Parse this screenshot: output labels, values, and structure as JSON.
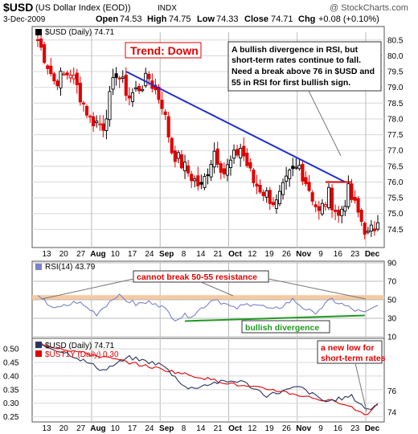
{
  "header": {
    "symbol": "$USD",
    "name": "(US Dollar Index (EOD))",
    "exchange": "INDX",
    "copyright": "@ StockCharts.com",
    "date": "3-Dec-2009",
    "open_label": "Open",
    "open": "74.53",
    "high_label": "High",
    "high": "74.75",
    "low_label": "Low",
    "low": "74.33",
    "close_label": "Close",
    "close": "74.71",
    "chg_label": "Chg",
    "chg": "+0.08 (+0.10%)"
  },
  "x_axis": {
    "labels": [
      {
        "text": "13",
        "bold": false
      },
      {
        "text": "20",
        "bold": false
      },
      {
        "text": "27",
        "bold": false
      },
      {
        "text": "Aug",
        "bold": true
      },
      {
        "text": "10",
        "bold": false
      },
      {
        "text": "17",
        "bold": false
      },
      {
        "text": "24",
        "bold": false
      },
      {
        "text": "Sep",
        "bold": true
      },
      {
        "text": "8",
        "bold": false
      },
      {
        "text": "14",
        "bold": false
      },
      {
        "text": "21",
        "bold": false
      },
      {
        "text": "Oct",
        "bold": true
      },
      {
        "text": "12",
        "bold": false
      },
      {
        "text": "19",
        "bold": false
      },
      {
        "text": "26",
        "bold": false
      },
      {
        "text": "Nov",
        "bold": true
      },
      {
        "text": "9",
        "bold": false
      },
      {
        "text": "16",
        "bold": false
      },
      {
        "text": "23",
        "bold": false
      },
      {
        "text": "Dec",
        "bold": true
      }
    ]
  },
  "panels": {
    "price": {
      "legend": "$USD (Daily) 74.71",
      "title_annotation": "Trend: Down",
      "note_lines": [
        "A bullish divergence in RSI, but",
        "short-term rates continue to fall.",
        "Need a break above 76 in $USD and",
        "55 in RSI for first bullish sign."
      ],
      "y_ticks": [
        "80.5",
        "80.0",
        "79.5",
        "79.0",
        "78.5",
        "78.0",
        "77.5",
        "77.0",
        "76.5",
        "76.0",
        "75.5",
        "75.0",
        "74.5"
      ]
    },
    "rsi": {
      "legend": "RSI(14) 43.79",
      "annotation_top": "cannot break 50-55 resistance",
      "annotation_bottom": "bullish divergence",
      "y_ticks": [
        "90",
        "70",
        "50",
        "30",
        "10"
      ]
    },
    "compare": {
      "legend_1": "$USD (Daily) 74.71",
      "legend_2": "$UST1Y (Daily) 0.30",
      "annotation": [
        "a new low for",
        "short-term rates"
      ],
      "y_ticks_left": [
        "0.50",
        "0.45",
        "0.40",
        "0.35",
        "0.30",
        "0.25"
      ],
      "y_ticks_right": [
        "76",
        "74"
      ]
    }
  },
  "colors": {
    "up_candle": "#000000",
    "down_candle": "#e00000",
    "trendline": "#1f2fd0",
    "resistance": "#e00000",
    "rsi_line": "#7b82c9",
    "rsi_band": "#f6c9a0",
    "divergence": "#1f9a1f",
    "usd_line": "#2a3560",
    "ust_line": "#e00000"
  },
  "chart_data": [
    {
      "type": "candlestick",
      "series": [
        {
          "name": "$USD (Daily)"
        }
      ],
      "ylim": [
        74.0,
        80.8
      ],
      "start": 80.6,
      "sessions": 105,
      "anchors": [
        [
          0,
          80.5
        ],
        [
          5,
          79.2
        ],
        [
          10,
          79.5
        ],
        [
          16,
          78.0
        ],
        [
          20,
          77.8
        ],
        [
          24,
          79.5
        ],
        [
          28,
          78.7
        ],
        [
          34,
          79.3
        ],
        [
          38,
          78.5
        ],
        [
          41,
          77.0
        ],
        [
          46,
          76.3
        ],
        [
          50,
          75.8
        ],
        [
          54,
          77.0
        ],
        [
          57,
          76.3
        ],
        [
          62,
          77.1
        ],
        [
          66,
          76.0
        ],
        [
          70,
          75.6
        ],
        [
          73,
          75.3
        ],
        [
          77,
          76.2
        ],
        [
          80,
          76.5
        ],
        [
          83,
          75.8
        ],
        [
          86,
          75.0
        ],
        [
          89,
          75.6
        ],
        [
          92,
          74.9
        ],
        [
          95,
          75.7
        ],
        [
          98,
          75.0
        ],
        [
          101,
          74.3
        ],
        [
          104,
          74.71
        ]
      ],
      "trendline": [
        [
          27,
          79.5
        ],
        [
          94,
          76.0
        ]
      ],
      "resistance": {
        "value": 76.0,
        "from": 88,
        "to": 96
      }
    },
    {
      "type": "line",
      "series": [
        {
          "name": "RSI(14)"
        }
      ],
      "ylim": [
        10,
        90
      ],
      "band": [
        50,
        55
      ],
      "anchors": [
        [
          0,
          52
        ],
        [
          6,
          40
        ],
        [
          12,
          48
        ],
        [
          18,
          35
        ],
        [
          24,
          55
        ],
        [
          30,
          45
        ],
        [
          36,
          48
        ],
        [
          42,
          30
        ],
        [
          48,
          35
        ],
        [
          54,
          52
        ],
        [
          60,
          40
        ],
        [
          66,
          47
        ],
        [
          72,
          38
        ],
        [
          78,
          50
        ],
        [
          84,
          35
        ],
        [
          90,
          50
        ],
        [
          96,
          40
        ],
        [
          100,
          35
        ],
        [
          104,
          44
        ]
      ],
      "divergence": [
        [
          45,
          27
        ],
        [
          100,
          33
        ]
      ]
    },
    {
      "type": "line",
      "series": [
        {
          "name": "$USD (Daily)",
          "axis": "right",
          "ylim": [
            73.3,
            80.8
          ],
          "anchors": [
            [
              0,
              80.5
            ],
            [
              10,
              79.5
            ],
            [
              20,
              78.0
            ],
            [
              28,
              79.2
            ],
            [
              38,
              78.5
            ],
            [
              46,
              76.2
            ],
            [
              54,
              76.8
            ],
            [
              62,
              77.0
            ],
            [
              70,
              75.6
            ],
            [
              80,
              76.4
            ],
            [
              88,
              75.0
            ],
            [
              96,
              75.5
            ],
            [
              101,
              74.2
            ],
            [
              104,
              74.71
            ]
          ]
        },
        {
          "name": "$UST1Y (Daily)",
          "axis": "left",
          "ylim": [
            0.24,
            0.53
          ],
          "anchors": [
            [
              0,
              0.52
            ],
            [
              8,
              0.5
            ],
            [
              16,
              0.48
            ],
            [
              24,
              0.46
            ],
            [
              32,
              0.44
            ],
            [
              40,
              0.42
            ],
            [
              48,
              0.4
            ],
            [
              56,
              0.38
            ],
            [
              64,
              0.36
            ],
            [
              72,
              0.35
            ],
            [
              80,
              0.33
            ],
            [
              88,
              0.31
            ],
            [
              94,
              0.3
            ],
            [
              98,
              0.27
            ],
            [
              101,
              0.26
            ],
            [
              104,
              0.3
            ]
          ]
        }
      ]
    }
  ]
}
